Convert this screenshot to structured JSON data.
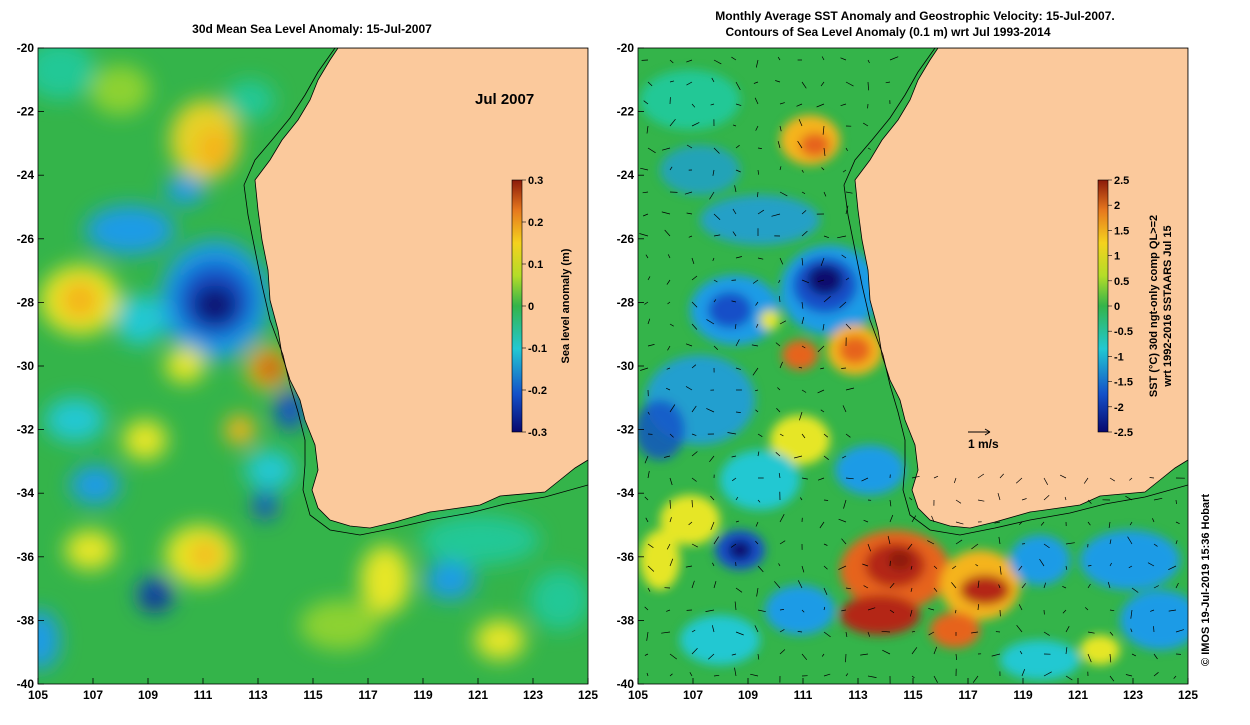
{
  "left_panel": {
    "title": "30d Mean Sea Level Anomaly: 15-Jul-2007",
    "month_label": "Jul 2007",
    "colorbar": {
      "label": "Sea level anomaly (m)",
      "ticks": [
        "0.3",
        "0.2",
        "0.1",
        "0",
        "-0.1",
        "-0.2",
        "-0.3"
      ]
    }
  },
  "right_panel": {
    "title_line1": "Monthly Average SST Anomaly  and Geostrophic Velocity: 15-Jul-2007.",
    "title_line2": "Contours of Sea Level Anomaly (0.1 m) wrt Jul 1993-2014",
    "velocity_scale": "1 m/s",
    "colorbar": {
      "label_line1": "SST (°C) 30d ngt-only comp QL>=2",
      "label_line2": "wrt 1992-2016 SSTAARS Jul 15",
      "ticks": [
        "2.5",
        "2",
        "1.5",
        "1",
        "0.5",
        "0",
        "-0.5",
        "-1",
        "-1.5",
        "-2",
        "-2.5"
      ]
    }
  },
  "x_ticks": [
    "105",
    "107",
    "109",
    "111",
    "113",
    "115",
    "117",
    "119",
    "121",
    "123",
    "125"
  ],
  "y_ticks": [
    "-20",
    "-22",
    "-24",
    "-26",
    "-28",
    "-30",
    "-32",
    "-34",
    "-36",
    "-38",
    "-40"
  ],
  "credit": "© IMOS 19-Jul-2019 15:36 Hobart",
  "colors": {
    "land": "#FBC99C",
    "ocean_base": "#33B84A",
    "colormap": [
      "#08086E",
      "#1450C8",
      "#1E9BE6",
      "#22C896",
      "#34B44A",
      "#8CD232",
      "#E6E628",
      "#F5B41E",
      "#E6641E",
      "#B42814",
      "#8C1A0A"
    ]
  }
}
